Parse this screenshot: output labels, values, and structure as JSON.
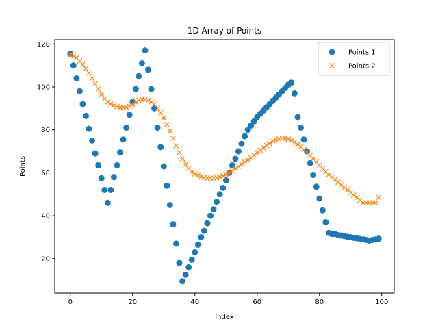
{
  "chart_data": {
    "type": "scatter",
    "title": "1D Array of Points",
    "xlabel": "Index",
    "ylabel": "Points",
    "xlim": [
      -5,
      104
    ],
    "ylim": [
      4,
      122
    ],
    "xticks": [
      0,
      20,
      40,
      60,
      80,
      100
    ],
    "yticks": [
      20,
      40,
      60,
      80,
      100,
      120
    ],
    "grid": false,
    "legend_position": "top-right",
    "series": [
      {
        "name": "Points 1",
        "marker": "circle",
        "color": "#1f77b4",
        "x": [
          0,
          1,
          2,
          3,
          4,
          5,
          6,
          7,
          8,
          9,
          10,
          11,
          12,
          13,
          14,
          15,
          16,
          17,
          18,
          19,
          20,
          21,
          22,
          23,
          24,
          25,
          26,
          27,
          28,
          29,
          30,
          31,
          32,
          33,
          34,
          35,
          36,
          37,
          38,
          39,
          40,
          41,
          42,
          43,
          44,
          45,
          46,
          47,
          48,
          49,
          50,
          51,
          52,
          53,
          54,
          55,
          56,
          57,
          58,
          59,
          60,
          61,
          62,
          63,
          64,
          65,
          66,
          67,
          68,
          69,
          70,
          71,
          72,
          73,
          74,
          75,
          76,
          77,
          78,
          79,
          80,
          81,
          82,
          83,
          84,
          85,
          86,
          87,
          88,
          89,
          90,
          91,
          92,
          93,
          94,
          95,
          96,
          97,
          98,
          99
        ],
        "y": [
          115.5,
          110,
          104,
          98,
          92,
          86.5,
          80.5,
          75,
          69,
          63.5,
          57.5,
          52,
          46,
          52,
          58,
          63.5,
          69.5,
          75.5,
          81,
          87,
          93,
          99,
          105,
          111,
          117,
          108,
          99,
          90,
          81,
          72,
          63,
          54,
          45,
          36,
          27,
          18,
          9.5,
          12.5,
          16,
          19.5,
          23,
          26.5,
          30,
          33,
          36.5,
          40,
          43,
          46.5,
          50,
          53,
          56.5,
          60,
          63.5,
          66.5,
          70,
          73.5,
          77,
          80,
          82,
          84,
          86,
          87.5,
          89,
          90.5,
          92,
          93.5,
          95,
          96.5,
          98,
          99.5,
          101,
          102,
          97,
          86,
          81,
          75.5,
          70,
          64.5,
          59,
          53.5,
          48,
          42.5,
          37,
          32,
          31.5,
          31.5,
          31,
          30.8,
          30.5,
          30.2,
          30,
          29.7,
          29.5,
          29.2,
          29,
          28.7,
          28.4,
          28.7,
          29,
          29.3
        ]
      },
      {
        "name": "Points 2",
        "marker": "x",
        "color": "#ff7f0e",
        "x": [
          0,
          1,
          2,
          3,
          4,
          5,
          6,
          7,
          8,
          9,
          10,
          11,
          12,
          13,
          14,
          15,
          16,
          17,
          18,
          19,
          20,
          21,
          22,
          23,
          24,
          25,
          26,
          27,
          28,
          29,
          30,
          31,
          32,
          33,
          34,
          35,
          36,
          37,
          38,
          39,
          40,
          41,
          42,
          43,
          44,
          45,
          46,
          47,
          48,
          49,
          50,
          51,
          52,
          53,
          54,
          55,
          56,
          57,
          58,
          59,
          60,
          61,
          62,
          63,
          64,
          65,
          66,
          67,
          68,
          69,
          70,
          71,
          72,
          73,
          74,
          75,
          76,
          77,
          78,
          79,
          80,
          81,
          82,
          83,
          84,
          85,
          86,
          87,
          88,
          89,
          90,
          91,
          92,
          93,
          94,
          95,
          96,
          97,
          98,
          99
        ],
        "y": [
          115,
          114.5,
          113.5,
          112,
          110.5,
          108.5,
          106.5,
          104,
          101.5,
          99,
          96.5,
          94.5,
          93,
          92,
          91.3,
          90.8,
          90.5,
          90.5,
          90.5,
          91,
          91.8,
          92.8,
          93.8,
          94.2,
          94.2,
          93.8,
          93,
          91.8,
          90,
          88,
          85.5,
          82.5,
          79.5,
          76,
          72.5,
          69.5,
          66.5,
          64,
          62,
          60.5,
          59.5,
          58.8,
          58.2,
          57.8,
          57.5,
          57.5,
          57.5,
          57.7,
          58,
          58.5,
          59.2,
          60,
          61,
          62,
          63,
          64,
          65,
          66,
          67,
          68.2,
          69.3,
          70.5,
          71.6,
          72.7,
          73.7,
          74.6,
          75.3,
          75.8,
          76.1,
          76.1,
          75.7,
          75,
          74.2,
          73.2,
          72.1,
          70.8,
          69.5,
          68,
          66.5,
          65,
          63.5,
          62,
          60.5,
          59.2,
          58,
          56.8,
          55.6,
          54.4,
          53.2,
          52,
          50.8,
          49.6,
          48.4,
          47.2,
          46,
          46,
          46,
          46,
          46,
          48.5
        ]
      }
    ]
  }
}
